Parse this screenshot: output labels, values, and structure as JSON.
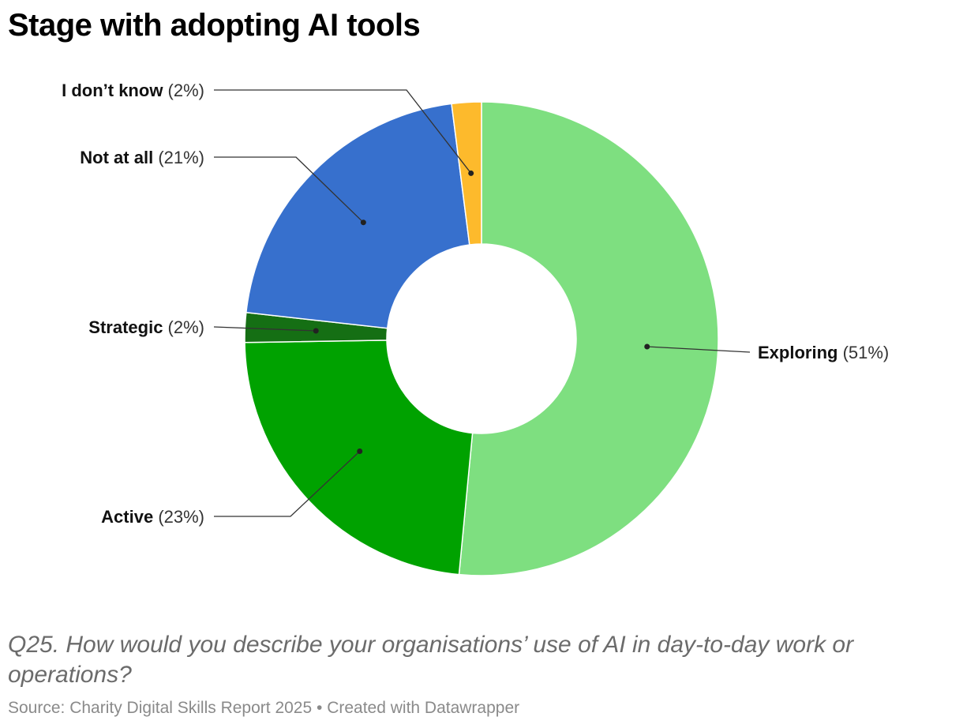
{
  "header": {
    "title": "Stage with adopting AI tools"
  },
  "footer": {
    "description": "Q25. How would you describe your organisations’ use of AI in day-to-day work or operations?",
    "source": "Source: Charity Digital Skills Report 2025 • Created with Datawrapper"
  },
  "chart_data": {
    "type": "pie",
    "donut": true,
    "unit": "%",
    "slices": [
      {
        "label": "Exploring",
        "value": 51,
        "value_label": "(51%)",
        "color": "#7edf80"
      },
      {
        "label": "Active",
        "value": 23,
        "value_label": "(23%)",
        "color": "#00a200"
      },
      {
        "label": "Strategic",
        "value": 2,
        "value_label": "(2%)",
        "color": "#156f14"
      },
      {
        "label": "Not at all",
        "value": 21,
        "value_label": "(21%)",
        "color": "#3770cd"
      },
      {
        "label": "I don’t know",
        "value": 2,
        "value_label": "(2%)",
        "color": "#fdba2c"
      }
    ],
    "title": "Stage with adopting AI tools",
    "legend": "none",
    "labels": "outside with leader lines"
  }
}
